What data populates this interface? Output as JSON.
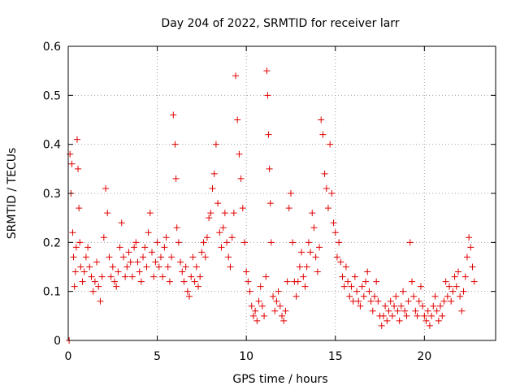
{
  "chart_data": {
    "type": "scatter",
    "title": "Day 204 of 2022, SRMTID for receiver larr",
    "xlabel": "GPS time / hours",
    "ylabel": "SRMTID / TECUs",
    "xlim": [
      0,
      24
    ],
    "ylim": [
      0,
      0.6
    ],
    "xticks": [
      0,
      5,
      10,
      15,
      20
    ],
    "yticks": [
      0,
      0.1,
      0.2,
      0.3,
      0.4,
      0.5,
      0.6
    ],
    "xtick_labels": [
      "0",
      "5",
      "10",
      "15",
      "20"
    ],
    "ytick_labels": [
      "0",
      "0.1",
      "0.2",
      "0.3",
      "0.4",
      "0.5",
      "0.6"
    ],
    "grid": true,
    "marker": "+",
    "color": "#e00000",
    "series": [
      {
        "name": "SRMTID",
        "points": [
          [
            0.05,
            0.0
          ],
          [
            0.1,
            0.38
          ],
          [
            0.15,
            0.3
          ],
          [
            0.2,
            0.36
          ],
          [
            0.25,
            0.22
          ],
          [
            0.3,
            0.17
          ],
          [
            0.35,
            0.11
          ],
          [
            0.4,
            0.14
          ],
          [
            0.45,
            0.19
          ],
          [
            0.5,
            0.41
          ],
          [
            0.55,
            0.35
          ],
          [
            0.6,
            0.27
          ],
          [
            0.65,
            0.2
          ],
          [
            0.7,
            0.15
          ],
          [
            0.8,
            0.12
          ],
          [
            0.9,
            0.14
          ],
          [
            1.0,
            0.17
          ],
          [
            1.1,
            0.19
          ],
          [
            1.2,
            0.15
          ],
          [
            1.3,
            0.13
          ],
          [
            1.4,
            0.1
          ],
          [
            1.5,
            0.12
          ],
          [
            1.6,
            0.16
          ],
          [
            1.7,
            0.11
          ],
          [
            1.8,
            0.08
          ],
          [
            1.9,
            0.13
          ],
          [
            2.0,
            0.21
          ],
          [
            2.1,
            0.31
          ],
          [
            2.2,
            0.26
          ],
          [
            2.3,
            0.17
          ],
          [
            2.4,
            0.13
          ],
          [
            2.5,
            0.15
          ],
          [
            2.6,
            0.12
          ],
          [
            2.7,
            0.11
          ],
          [
            2.8,
            0.14
          ],
          [
            2.9,
            0.19
          ],
          [
            3.0,
            0.24
          ],
          [
            3.1,
            0.17
          ],
          [
            3.2,
            0.13
          ],
          [
            3.3,
            0.15
          ],
          [
            3.4,
            0.18
          ],
          [
            3.5,
            0.16
          ],
          [
            3.6,
            0.13
          ],
          [
            3.7,
            0.19
          ],
          [
            3.8,
            0.2
          ],
          [
            3.9,
            0.16
          ],
          [
            4.0,
            0.14
          ],
          [
            4.1,
            0.12
          ],
          [
            4.2,
            0.17
          ],
          [
            4.3,
            0.19
          ],
          [
            4.4,
            0.15
          ],
          [
            4.5,
            0.22
          ],
          [
            4.6,
            0.26
          ],
          [
            4.7,
            0.18
          ],
          [
            4.8,
            0.13
          ],
          [
            4.9,
            0.16
          ],
          [
            5.0,
            0.2
          ],
          [
            5.1,
            0.15
          ],
          [
            5.2,
            0.17
          ],
          [
            5.3,
            0.13
          ],
          [
            5.4,
            0.19
          ],
          [
            5.5,
            0.21
          ],
          [
            5.6,
            0.15
          ],
          [
            5.7,
            0.12
          ],
          [
            5.8,
            0.17
          ],
          [
            5.9,
            0.46
          ],
          [
            6.0,
            0.4
          ],
          [
            6.05,
            0.33
          ],
          [
            6.1,
            0.23
          ],
          [
            6.2,
            0.2
          ],
          [
            6.3,
            0.16
          ],
          [
            6.4,
            0.14
          ],
          [
            6.5,
            0.12
          ],
          [
            6.6,
            0.15
          ],
          [
            6.7,
            0.1
          ],
          [
            6.8,
            0.09
          ],
          [
            6.9,
            0.13
          ],
          [
            7.0,
            0.17
          ],
          [
            7.1,
            0.12
          ],
          [
            7.2,
            0.15
          ],
          [
            7.3,
            0.11
          ],
          [
            7.4,
            0.13
          ],
          [
            7.5,
            0.18
          ],
          [
            7.6,
            0.2
          ],
          [
            7.7,
            0.17
          ],
          [
            7.8,
            0.21
          ],
          [
            7.9,
            0.25
          ],
          [
            8.0,
            0.26
          ],
          [
            8.1,
            0.31
          ],
          [
            8.2,
            0.34
          ],
          [
            8.3,
            0.4
          ],
          [
            8.4,
            0.28
          ],
          [
            8.5,
            0.22
          ],
          [
            8.6,
            0.19
          ],
          [
            8.7,
            0.23
          ],
          [
            8.8,
            0.26
          ],
          [
            8.9,
            0.2
          ],
          [
            9.0,
            0.17
          ],
          [
            9.1,
            0.15
          ],
          [
            9.2,
            0.21
          ],
          [
            9.3,
            0.26
          ],
          [
            9.4,
            0.54
          ],
          [
            9.5,
            0.45
          ],
          [
            9.6,
            0.38
          ],
          [
            9.7,
            0.33
          ],
          [
            9.8,
            0.27
          ],
          [
            9.9,
            0.2
          ],
          [
            10.0,
            0.14
          ],
          [
            10.1,
            0.12
          ],
          [
            10.2,
            0.1
          ],
          [
            10.3,
            0.07
          ],
          [
            10.4,
            0.05
          ],
          [
            10.5,
            0.06
          ],
          [
            10.6,
            0.04
          ],
          [
            10.7,
            0.08
          ],
          [
            10.8,
            0.11
          ],
          [
            10.9,
            0.07
          ],
          [
            11.0,
            0.05
          ],
          [
            11.1,
            0.13
          ],
          [
            11.15,
            0.55
          ],
          [
            11.2,
            0.5
          ],
          [
            11.25,
            0.42
          ],
          [
            11.3,
            0.35
          ],
          [
            11.35,
            0.28
          ],
          [
            11.4,
            0.2
          ],
          [
            11.5,
            0.09
          ],
          [
            11.6,
            0.06
          ],
          [
            11.7,
            0.08
          ],
          [
            11.8,
            0.1
          ],
          [
            11.9,
            0.07
          ],
          [
            12.0,
            0.05
          ],
          [
            12.1,
            0.04
          ],
          [
            12.2,
            0.06
          ],
          [
            12.3,
            0.12
          ],
          [
            12.4,
            0.27
          ],
          [
            12.5,
            0.3
          ],
          [
            12.6,
            0.2
          ],
          [
            12.7,
            0.12
          ],
          [
            12.8,
            0.09
          ],
          [
            12.9,
            0.12
          ],
          [
            13.0,
            0.15
          ],
          [
            13.1,
            0.18
          ],
          [
            13.2,
            0.13
          ],
          [
            13.3,
            0.11
          ],
          [
            13.4,
            0.15
          ],
          [
            13.5,
            0.2
          ],
          [
            13.6,
            0.18
          ],
          [
            13.7,
            0.26
          ],
          [
            13.8,
            0.23
          ],
          [
            13.9,
            0.17
          ],
          [
            14.0,
            0.14
          ],
          [
            14.1,
            0.19
          ],
          [
            14.2,
            0.45
          ],
          [
            14.3,
            0.42
          ],
          [
            14.4,
            0.34
          ],
          [
            14.5,
            0.31
          ],
          [
            14.6,
            0.27
          ],
          [
            14.7,
            0.4
          ],
          [
            14.8,
            0.3
          ],
          [
            14.9,
            0.24
          ],
          [
            15.0,
            0.22
          ],
          [
            15.1,
            0.17
          ],
          [
            15.2,
            0.2
          ],
          [
            15.3,
            0.16
          ],
          [
            15.4,
            0.13
          ],
          [
            15.5,
            0.11
          ],
          [
            15.6,
            0.15
          ],
          [
            15.7,
            0.12
          ],
          [
            15.8,
            0.09
          ],
          [
            15.9,
            0.11
          ],
          [
            16.0,
            0.08
          ],
          [
            16.1,
            0.13
          ],
          [
            16.2,
            0.1
          ],
          [
            16.3,
            0.08
          ],
          [
            16.4,
            0.07
          ],
          [
            16.5,
            0.11
          ],
          [
            16.6,
            0.09
          ],
          [
            16.7,
            0.12
          ],
          [
            16.8,
            0.14
          ],
          [
            16.9,
            0.1
          ],
          [
            17.0,
            0.08
          ],
          [
            17.1,
            0.06
          ],
          [
            17.2,
            0.09
          ],
          [
            17.3,
            0.12
          ],
          [
            17.4,
            0.08
          ],
          [
            17.5,
            0.05
          ],
          [
            17.6,
            0.03
          ],
          [
            17.7,
            0.05
          ],
          [
            17.8,
            0.07
          ],
          [
            17.9,
            0.04
          ],
          [
            18.0,
            0.06
          ],
          [
            18.1,
            0.08
          ],
          [
            18.2,
            0.05
          ],
          [
            18.3,
            0.07
          ],
          [
            18.4,
            0.09
          ],
          [
            18.5,
            0.06
          ],
          [
            18.6,
            0.04
          ],
          [
            18.7,
            0.07
          ],
          [
            18.8,
            0.1
          ],
          [
            18.9,
            0.06
          ],
          [
            19.0,
            0.05
          ],
          [
            19.1,
            0.08
          ],
          [
            19.2,
            0.2
          ],
          [
            19.3,
            0.12
          ],
          [
            19.4,
            0.09
          ],
          [
            19.5,
            0.06
          ],
          [
            19.6,
            0.05
          ],
          [
            19.7,
            0.08
          ],
          [
            19.8,
            0.11
          ],
          [
            19.9,
            0.07
          ],
          [
            20.0,
            0.05
          ],
          [
            20.1,
            0.04
          ],
          [
            20.2,
            0.06
          ],
          [
            20.3,
            0.03
          ],
          [
            20.4,
            0.05
          ],
          [
            20.5,
            0.07
          ],
          [
            20.6,
            0.09
          ],
          [
            20.7,
            0.06
          ],
          [
            20.8,
            0.04
          ],
          [
            20.9,
            0.07
          ],
          [
            21.0,
            0.05
          ],
          [
            21.1,
            0.08
          ],
          [
            21.2,
            0.12
          ],
          [
            21.3,
            0.09
          ],
          [
            21.4,
            0.11
          ],
          [
            21.5,
            0.08
          ],
          [
            21.6,
            0.1
          ],
          [
            21.7,
            0.13
          ],
          [
            21.8,
            0.11
          ],
          [
            21.9,
            0.14
          ],
          [
            22.0,
            0.09
          ],
          [
            22.1,
            0.06
          ],
          [
            22.2,
            0.1
          ],
          [
            22.3,
            0.13
          ],
          [
            22.4,
            0.17
          ],
          [
            22.5,
            0.21
          ],
          [
            22.6,
            0.19
          ],
          [
            22.7,
            0.15
          ],
          [
            22.8,
            0.12
          ]
        ]
      }
    ]
  }
}
